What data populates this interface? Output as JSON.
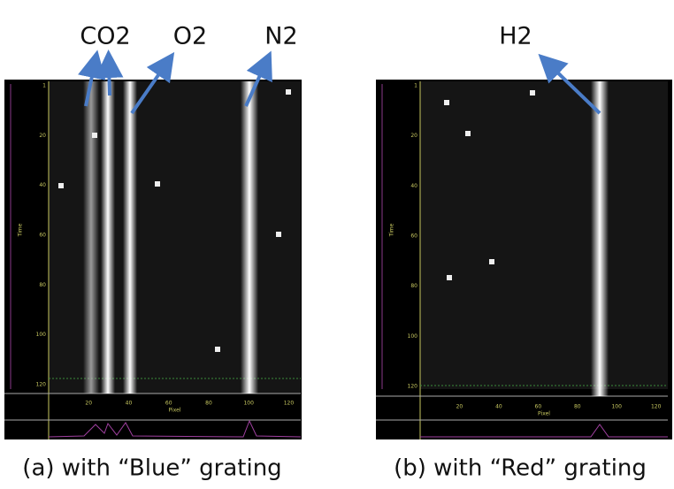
{
  "labels": {
    "co2": "CO2",
    "o2": "O2",
    "n2": "N2",
    "h2": "H2"
  },
  "panels": [
    {
      "caption": "(a) with “Blue” grating",
      "y_ticks": [
        "1",
        "20",
        "40",
        "60",
        "80",
        "100",
        "120"
      ],
      "x_ticks": [
        "20",
        "40",
        "60",
        "80",
        "100",
        "120"
      ],
      "x_label": "Pixel",
      "y_label": "Time"
    },
    {
      "caption": "(b) with “Red” grating",
      "y_ticks": [
        "1",
        "20",
        "40",
        "60",
        "80",
        "100",
        "120"
      ],
      "x_ticks": [
        "20",
        "40",
        "60",
        "80",
        "100",
        "120"
      ],
      "x_label": "Pixel",
      "y_label": "Time"
    }
  ]
}
